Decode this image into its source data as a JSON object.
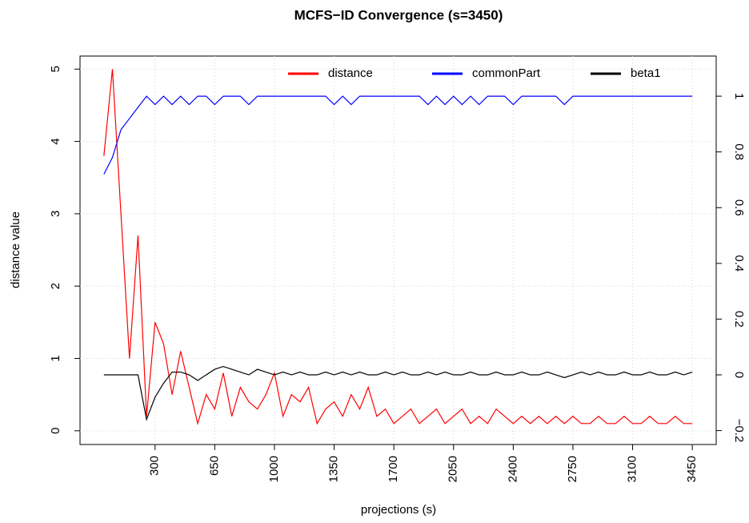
{
  "chart_data": {
    "type": "line",
    "title": "MCFS−ID Convergence (s=3450)",
    "xlabel": "projections (s)",
    "ylabel": "distance value",
    "x": [
      0,
      50,
      100,
      150,
      200,
      250,
      300,
      350,
      400,
      450,
      500,
      550,
      600,
      650,
      700,
      750,
      800,
      850,
      900,
      950,
      1000,
      1050,
      1100,
      1150,
      1200,
      1250,
      1300,
      1350,
      1400,
      1450,
      1500,
      1550,
      1600,
      1650,
      1700,
      1750,
      1800,
      1850,
      1900,
      1950,
      2000,
      2050,
      2100,
      2150,
      2200,
      2250,
      2300,
      2350,
      2400,
      2450,
      2500,
      2550,
      2600,
      2650,
      2700,
      2750,
      2800,
      2850,
      2900,
      2950,
      3000,
      3050,
      3100,
      3150,
      3200,
      3250,
      3300,
      3350,
      3400,
      3450
    ],
    "series": [
      {
        "name": "distance",
        "color": "#ff0000",
        "values": [
          3.8,
          5.0,
          3.0,
          1.0,
          2.7,
          0.2,
          1.5,
          1.2,
          0.5,
          1.1,
          0.6,
          0.1,
          0.5,
          0.3,
          0.8,
          0.2,
          0.6,
          0.4,
          0.3,
          0.5,
          0.8,
          0.2,
          0.5,
          0.4,
          0.6,
          0.1,
          0.3,
          0.4,
          0.2,
          0.5,
          0.3,
          0.6,
          0.2,
          0.3,
          0.1,
          0.2,
          0.3,
          0.1,
          0.2,
          0.3,
          0.1,
          0.2,
          0.3,
          0.1,
          0.2,
          0.1,
          0.3,
          0.2,
          0.1,
          0.2,
          0.1,
          0.2,
          0.1,
          0.2,
          0.1,
          0.2,
          0.1,
          0.1,
          0.2,
          0.1,
          0.1,
          0.2,
          0.1,
          0.1,
          0.2,
          0.1,
          0.1,
          0.2,
          0.1,
          0.1
        ]
      },
      {
        "name": "commonPart",
        "color": "#0000ff",
        "axis": "y2",
        "values": [
          0.72,
          0.78,
          0.88,
          0.92,
          0.96,
          1,
          0.97,
          1,
          0.97,
          1,
          0.97,
          1,
          1,
          0.97,
          1,
          1,
          1,
          0.97,
          1,
          1,
          1,
          1,
          1,
          1,
          1,
          1,
          1,
          0.97,
          1,
          0.97,
          1,
          1,
          1,
          1,
          1,
          1,
          1,
          1,
          0.97,
          1,
          0.97,
          1,
          0.97,
          1,
          0.97,
          1,
          1,
          1,
          0.97,
          1,
          1,
          1,
          1,
          1,
          0.97,
          1,
          1,
          1,
          1,
          1,
          1,
          1,
          1,
          1,
          1,
          1,
          1,
          1,
          1,
          1
        ]
      },
      {
        "name": "beta1",
        "color": "#000000",
        "axis": "y2",
        "values": [
          0,
          0,
          0,
          0,
          0,
          -0.16,
          -0.08,
          -0.03,
          0.01,
          0.01,
          0.0,
          -0.02,
          0.0,
          0.02,
          0.03,
          0.02,
          0.01,
          0.0,
          0.02,
          0.01,
          0.0,
          0.01,
          0.0,
          0.01,
          0.0,
          0.0,
          0.01,
          0.0,
          0.01,
          0.0,
          0.01,
          0.0,
          0.0,
          0.01,
          0.0,
          0.01,
          0.0,
          0.0,
          0.01,
          0.0,
          0.01,
          0.0,
          0.0,
          0.01,
          0.0,
          0.0,
          0.01,
          0.0,
          0.0,
          0.01,
          0.0,
          0.0,
          0.01,
          0.0,
          -0.01,
          0.0,
          0.01,
          0.0,
          0.01,
          0.0,
          0.0,
          0.01,
          0.0,
          0.0,
          0.01,
          0.0,
          0.0,
          0.01,
          0.0,
          0.01
        ]
      }
    ],
    "xlim": [
      -140,
      3590
    ],
    "xticks": [
      300,
      650,
      1000,
      1350,
      1700,
      2050,
      2400,
      2750,
      3100,
      3450
    ],
    "ylim": [
      -0.19,
      5.18
    ],
    "yticks": [
      0,
      1,
      2,
      3,
      4,
      5
    ],
    "y2lim": [
      -0.25,
      1.144
    ],
    "y2ticks": [
      {
        "value": -0.2,
        "label": "−0.2"
      },
      0,
      0.2,
      0.4,
      0.6,
      0.8,
      1
    ],
    "grid": true,
    "legend": "top"
  }
}
